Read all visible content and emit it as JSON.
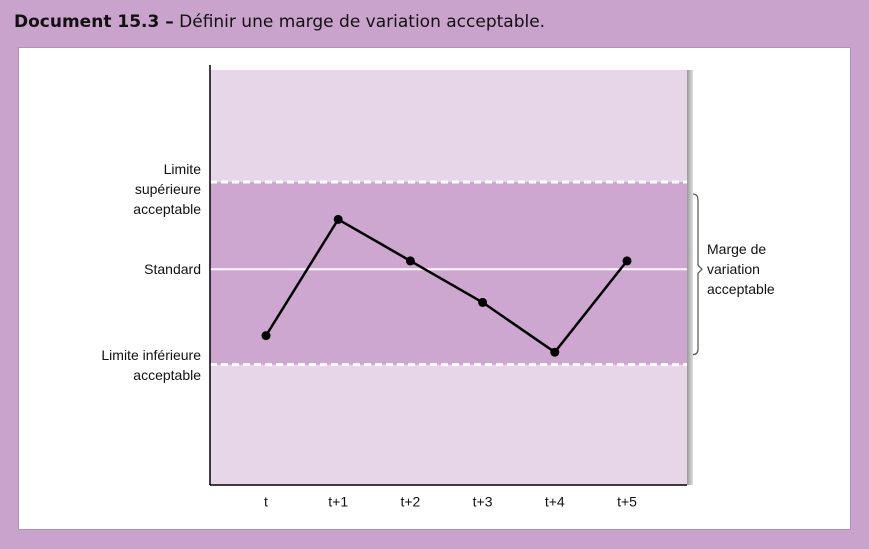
{
  "chart_data": {
    "type": "line",
    "title_label": "Document 15.3 –",
    "title": "Définir une marge de variation acceptable.",
    "categories": [
      "t",
      "t+1",
      "t+2",
      "t+3",
      "t+4",
      "t+5"
    ],
    "values": [
      36,
      64,
      54,
      44,
      32,
      54
    ],
    "color": "#000000",
    "ylim": [
      0,
      100
    ],
    "yticks": [
      {
        "value": 73,
        "label": "Limite supérieure acceptable"
      },
      {
        "value": 52,
        "label": "Standard"
      },
      {
        "value": 29,
        "label": "Limite inférieure acceptable"
      }
    ],
    "annotation": "Marge de variation acceptable"
  }
}
